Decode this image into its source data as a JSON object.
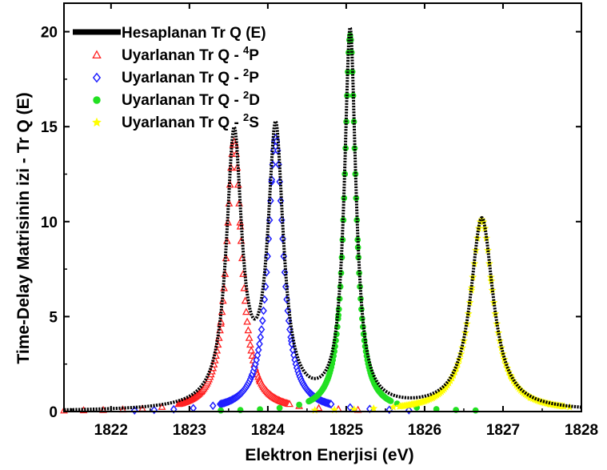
{
  "chart_data": {
    "type": "line",
    "xlabel": "Elektron Enerjisi (eV)",
    "ylabel": "Time-Delay Matrisinin izi  - Tr Q (E)",
    "xlim": [
      1821.4,
      1828
    ],
    "ylim": [
      0,
      21.5
    ],
    "xticks": [
      "1822",
      "1823",
      "1824",
      "1825",
      "1826",
      "1827",
      "1828"
    ],
    "yticks": [
      "0",
      "5",
      "10",
      "15",
      "20"
    ],
    "grid": false,
    "legend_position": "top-left",
    "series": [
      {
        "name": "Hesaplanan Tr Q (E)",
        "style": "line",
        "color": "#000000",
        "peaks": [
          {
            "center": 1823.57,
            "height": 14.2,
            "halfwidth": 0.118
          },
          {
            "center": 1824.1,
            "height": 14.4,
            "halfwidth": 0.118
          },
          {
            "center": 1825.05,
            "height": 19.8,
            "halfwidth": 0.088
          },
          {
            "center": 1826.73,
            "height": 10.1,
            "halfwidth": 0.175
          }
        ]
      },
      {
        "name": "Uyarlanan Tr Q - ",
        "term": "4P",
        "term_sup": "4",
        "term_letter": "P",
        "marker": "triangle",
        "color": "#ff2020",
        "peak": {
          "center": 1823.57,
          "height": 14.2,
          "halfwidth": 0.118
        },
        "x_range": [
          1821.4,
          1825.2
        ]
      },
      {
        "name": "Uyarlanan Tr Q - ",
        "term": "2P",
        "term_sup": "2",
        "term_letter": "P",
        "marker": "diamond",
        "color": "#1f1fff",
        "peak": {
          "center": 1824.1,
          "height": 14.4,
          "halfwidth": 0.118
        },
        "x_range": [
          1822.3,
          1826.0
        ]
      },
      {
        "name": "Uyarlanan Tr Q - ",
        "term": "2D",
        "term_sup": "2",
        "term_letter": "D",
        "marker": "circle",
        "color": "#22e022",
        "peak": {
          "center": 1825.05,
          "height": 19.8,
          "halfwidth": 0.088
        },
        "x_range": [
          1823.4,
          1826.8
        ]
      },
      {
        "name": "Uyarlanan Tr Q - ",
        "term": "2S",
        "term_sup": "2",
        "term_letter": "S",
        "marker": "star",
        "color": "#ffff00",
        "peak": {
          "center": 1826.73,
          "height": 10.1,
          "halfwidth": 0.175
        },
        "x_range": [
          1824.6,
          1828.0
        ]
      }
    ]
  }
}
